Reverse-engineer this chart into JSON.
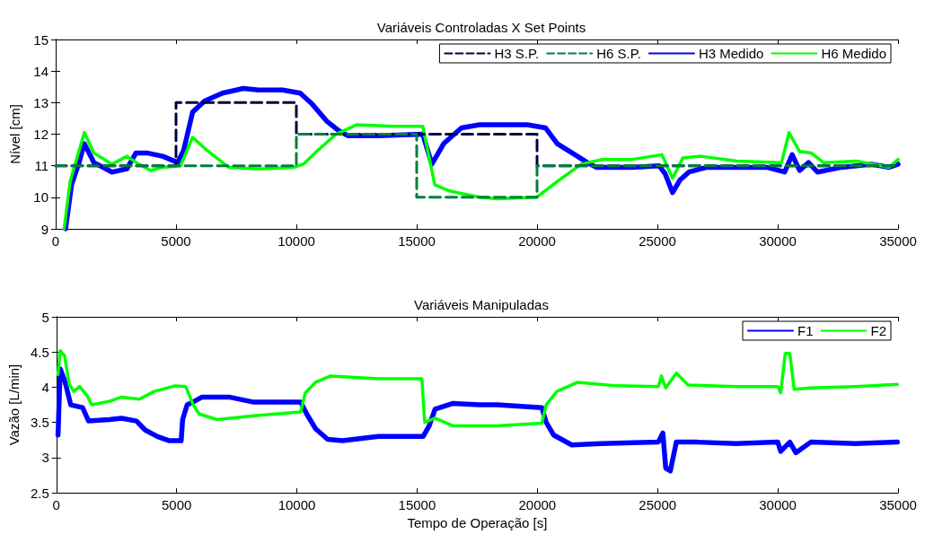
{
  "chart_data": [
    {
      "type": "line",
      "title": "Variáveis Controladas X Set Points",
      "ylabel": "Nível [cm]",
      "xlim": [
        0,
        35000
      ],
      "xticks": [
        0,
        5000,
        10000,
        15000,
        20000,
        25000,
        30000,
        35000
      ],
      "ylim": [
        9,
        15
      ],
      "yticks": [
        9,
        10,
        11,
        12,
        13,
        14,
        15
      ],
      "grid": false,
      "legend": "top right",
      "marker": "none",
      "line_style": "solid",
      "series": [
        {
          "name": "H3 S.P.",
          "color": "#000040",
          "line_style": "dashed",
          "x": [
            0,
            5000,
            5000,
            10000,
            10000,
            20000,
            20000,
            35000
          ],
          "values": [
            11,
            11,
            13,
            13,
            12,
            12,
            11,
            11
          ]
        },
        {
          "name": "H6 S.P.",
          "color": "#007f3f",
          "line_style": "dashed",
          "x": [
            0,
            10000,
            10000,
            15000,
            15000,
            20000,
            20000,
            35000
          ],
          "values": [
            11,
            11,
            12,
            12,
            10,
            10,
            11,
            11
          ]
        },
        {
          "name": "H3 Medido",
          "color": "#0000ff",
          "x": [
            410,
            660,
            970,
            1190,
            1590,
            2340,
            2960,
            3330,
            3830,
            4450,
            5070,
            5320,
            5690,
            6190,
            6930,
            7800,
            8420,
            9420,
            10160,
            10660,
            11280,
            11780,
            12150,
            13390,
            15250,
            15630,
            16120,
            16860,
            17610,
            18360,
            19600,
            20350,
            20840,
            21470,
            22090,
            22460,
            23950,
            25070,
            25320,
            25630,
            25940,
            26310,
            27060,
            29540,
            30290,
            30600,
            30910,
            31280,
            31650,
            32650,
            33890,
            34630,
            35000
          ],
          "values": [
            9,
            10.4,
            11.1,
            11.7,
            11.1,
            10.8,
            10.9,
            11.4,
            11.4,
            11.3,
            11.1,
            11.5,
            12.7,
            13.05,
            13.3,
            13.45,
            13.4,
            13.4,
            13.3,
            12.95,
            12.4,
            12.1,
            11.95,
            11.95,
            12,
            11.05,
            11.7,
            12.2,
            12.3,
            12.3,
            12.3,
            12.2,
            11.7,
            11.4,
            11.1,
            10.95,
            10.95,
            11,
            10.75,
            10.15,
            10.55,
            10.8,
            10.95,
            10.95,
            10.8,
            11.35,
            10.85,
            11.1,
            10.8,
            10.95,
            11.05,
            10.95,
            11.05
          ]
        },
        {
          "name": "H6 Medido",
          "color": "#00ff00",
          "x": [
            350,
            600,
            1190,
            1590,
            2340,
            2960,
            3450,
            3950,
            4450,
            5190,
            5690,
            6190,
            7180,
            8420,
            9910,
            10290,
            10910,
            11650,
            12520,
            14010,
            15250,
            15750,
            16370,
            17610,
            18360,
            19980,
            20840,
            21840,
            22710,
            23950,
            25190,
            25630,
            26060,
            26810,
            28300,
            30160,
            30470,
            30910,
            31400,
            31900,
            33270,
            34630,
            35000
          ],
          "values": [
            9,
            10.5,
            12.05,
            11.4,
            11.05,
            11.3,
            11.05,
            10.85,
            10.95,
            11,
            11.9,
            11.55,
            10.95,
            10.9,
            10.95,
            11.05,
            11.5,
            12,
            12.3,
            12.25,
            12.25,
            10.4,
            10.2,
            10,
            9.95,
            10,
            10.5,
            11.05,
            11.2,
            11.2,
            11.35,
            10.6,
            11.25,
            11.3,
            11.15,
            11.1,
            12.05,
            11.45,
            11.4,
            11.1,
            11.15,
            10.95,
            11.2
          ]
        }
      ]
    },
    {
      "type": "line",
      "title": "Variáveis Manipuladas",
      "xlabel": "Tempo de Operação [s]",
      "ylabel": "Vazão [L/min]",
      "xlim": [
        0,
        35000
      ],
      "xticks": [
        0,
        5000,
        10000,
        15000,
        20000,
        25000,
        30000,
        35000
      ],
      "ylim": [
        2.5,
        5
      ],
      "yticks": [
        2.5,
        3,
        3.5,
        4,
        4.5,
        5
      ],
      "grid": false,
      "legend": "top right",
      "marker": "none",
      "line_style": "solid",
      "series": [
        {
          "name": "F1",
          "color": "#0000ff",
          "x": [
            70,
            160,
            350,
            600,
            1090,
            1340,
            2210,
            2710,
            3330,
            3700,
            4200,
            4700,
            5190,
            5250,
            5440,
            5690,
            6060,
            7180,
            8170,
            10160,
            10410,
            10780,
            11280,
            11900,
            13390,
            15250,
            15500,
            15750,
            16500,
            17610,
            18320,
            20190,
            20370,
            20680,
            21430,
            22670,
            25030,
            25220,
            25340,
            25530,
            25780,
            26650,
            28260,
            30000,
            30120,
            30500,
            30750,
            31370,
            33230,
            34970
          ],
          "values": [
            3.32,
            4.26,
            4.09,
            3.75,
            3.71,
            3.52,
            3.54,
            3.56,
            3.52,
            3.39,
            3.3,
            3.24,
            3.24,
            3.54,
            3.75,
            3.79,
            3.86,
            3.86,
            3.79,
            3.79,
            3.62,
            3.41,
            3.26,
            3.24,
            3.3,
            3.3,
            3.45,
            3.69,
            3.77,
            3.75,
            3.75,
            3.71,
            3.5,
            3.32,
            3.18,
            3.2,
            3.22,
            3.35,
            2.85,
            2.81,
            3.22,
            3.22,
            3.2,
            3.22,
            3.09,
            3.22,
            3.07,
            3.22,
            3.2,
            3.22
          ]
        },
        {
          "name": "F2",
          "color": "#00ff00",
          "x": [
            70,
            160,
            350,
            530,
            720,
            970,
            1280,
            1470,
            2210,
            2710,
            3450,
            4070,
            4940,
            5380,
            5690,
            5940,
            6680,
            8420,
            10160,
            10350,
            10780,
            11400,
            13390,
            15200,
            15320,
            15750,
            16500,
            17610,
            18320,
            20190,
            20370,
            20810,
            21680,
            23290,
            25030,
            25160,
            25340,
            25780,
            26270,
            28260,
            30000,
            30120,
            30310,
            30500,
            30680,
            31370,
            33230,
            34970
          ],
          "values": [
            4.18,
            4.52,
            4.44,
            4.05,
            3.94,
            4.01,
            3.88,
            3.75,
            3.8,
            3.86,
            3.83,
            3.94,
            4.02,
            4.01,
            3.75,
            3.62,
            3.54,
            3.6,
            3.65,
            3.92,
            4.07,
            4.16,
            4.12,
            4.12,
            3.5,
            3.56,
            3.45,
            3.45,
            3.45,
            3.49,
            3.75,
            3.94,
            4.07,
            4.02,
            4.01,
            4.16,
            3.99,
            4.2,
            4.03,
            4.01,
            4.01,
            3.92,
            4.48,
            4.48,
            3.97,
            3.99,
            4.01,
            4.04
          ]
        }
      ]
    }
  ]
}
